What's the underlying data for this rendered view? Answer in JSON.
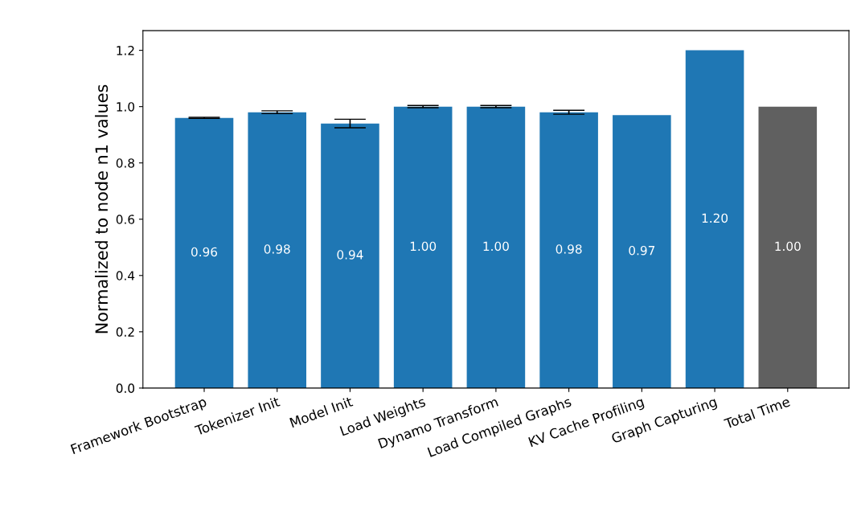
{
  "chart_data": {
    "type": "bar",
    "ylabel": "Normalized to node n1 values",
    "categories": [
      "Framework Bootstrap",
      "Tokenizer Init",
      "Model Init",
      "Load Weights",
      "Dynamo Transform",
      "Load Compiled Graphs",
      "KV Cache Profiling",
      "Graph Capturing",
      "Total Time"
    ],
    "values": [
      0.96,
      0.98,
      0.94,
      1.0,
      1.0,
      0.98,
      0.97,
      1.2,
      1.0
    ],
    "colors": [
      "#1f77b4",
      "#1f77b4",
      "#1f77b4",
      "#1f77b4",
      "#1f77b4",
      "#1f77b4",
      "#1f77b4",
      "#1f77b4",
      "#606060"
    ],
    "errors": [
      0.002,
      0.005,
      0.015,
      0.004,
      0.004,
      0.007,
      null,
      null,
      null
    ],
    "value_labels": [
      "0.96",
      "0.98",
      "0.94",
      "1.00",
      "1.00",
      "0.98",
      "0.97",
      "1.20",
      "1.00"
    ],
    "ylim": [
      0,
      1.27
    ],
    "yticks": [
      {
        "value": 0,
        "label": "0.0"
      },
      0.2,
      0.4,
      0.6,
      0.8,
      {
        "value": 1,
        "label": "1.0"
      },
      1.2
    ],
    "grid": false
  }
}
